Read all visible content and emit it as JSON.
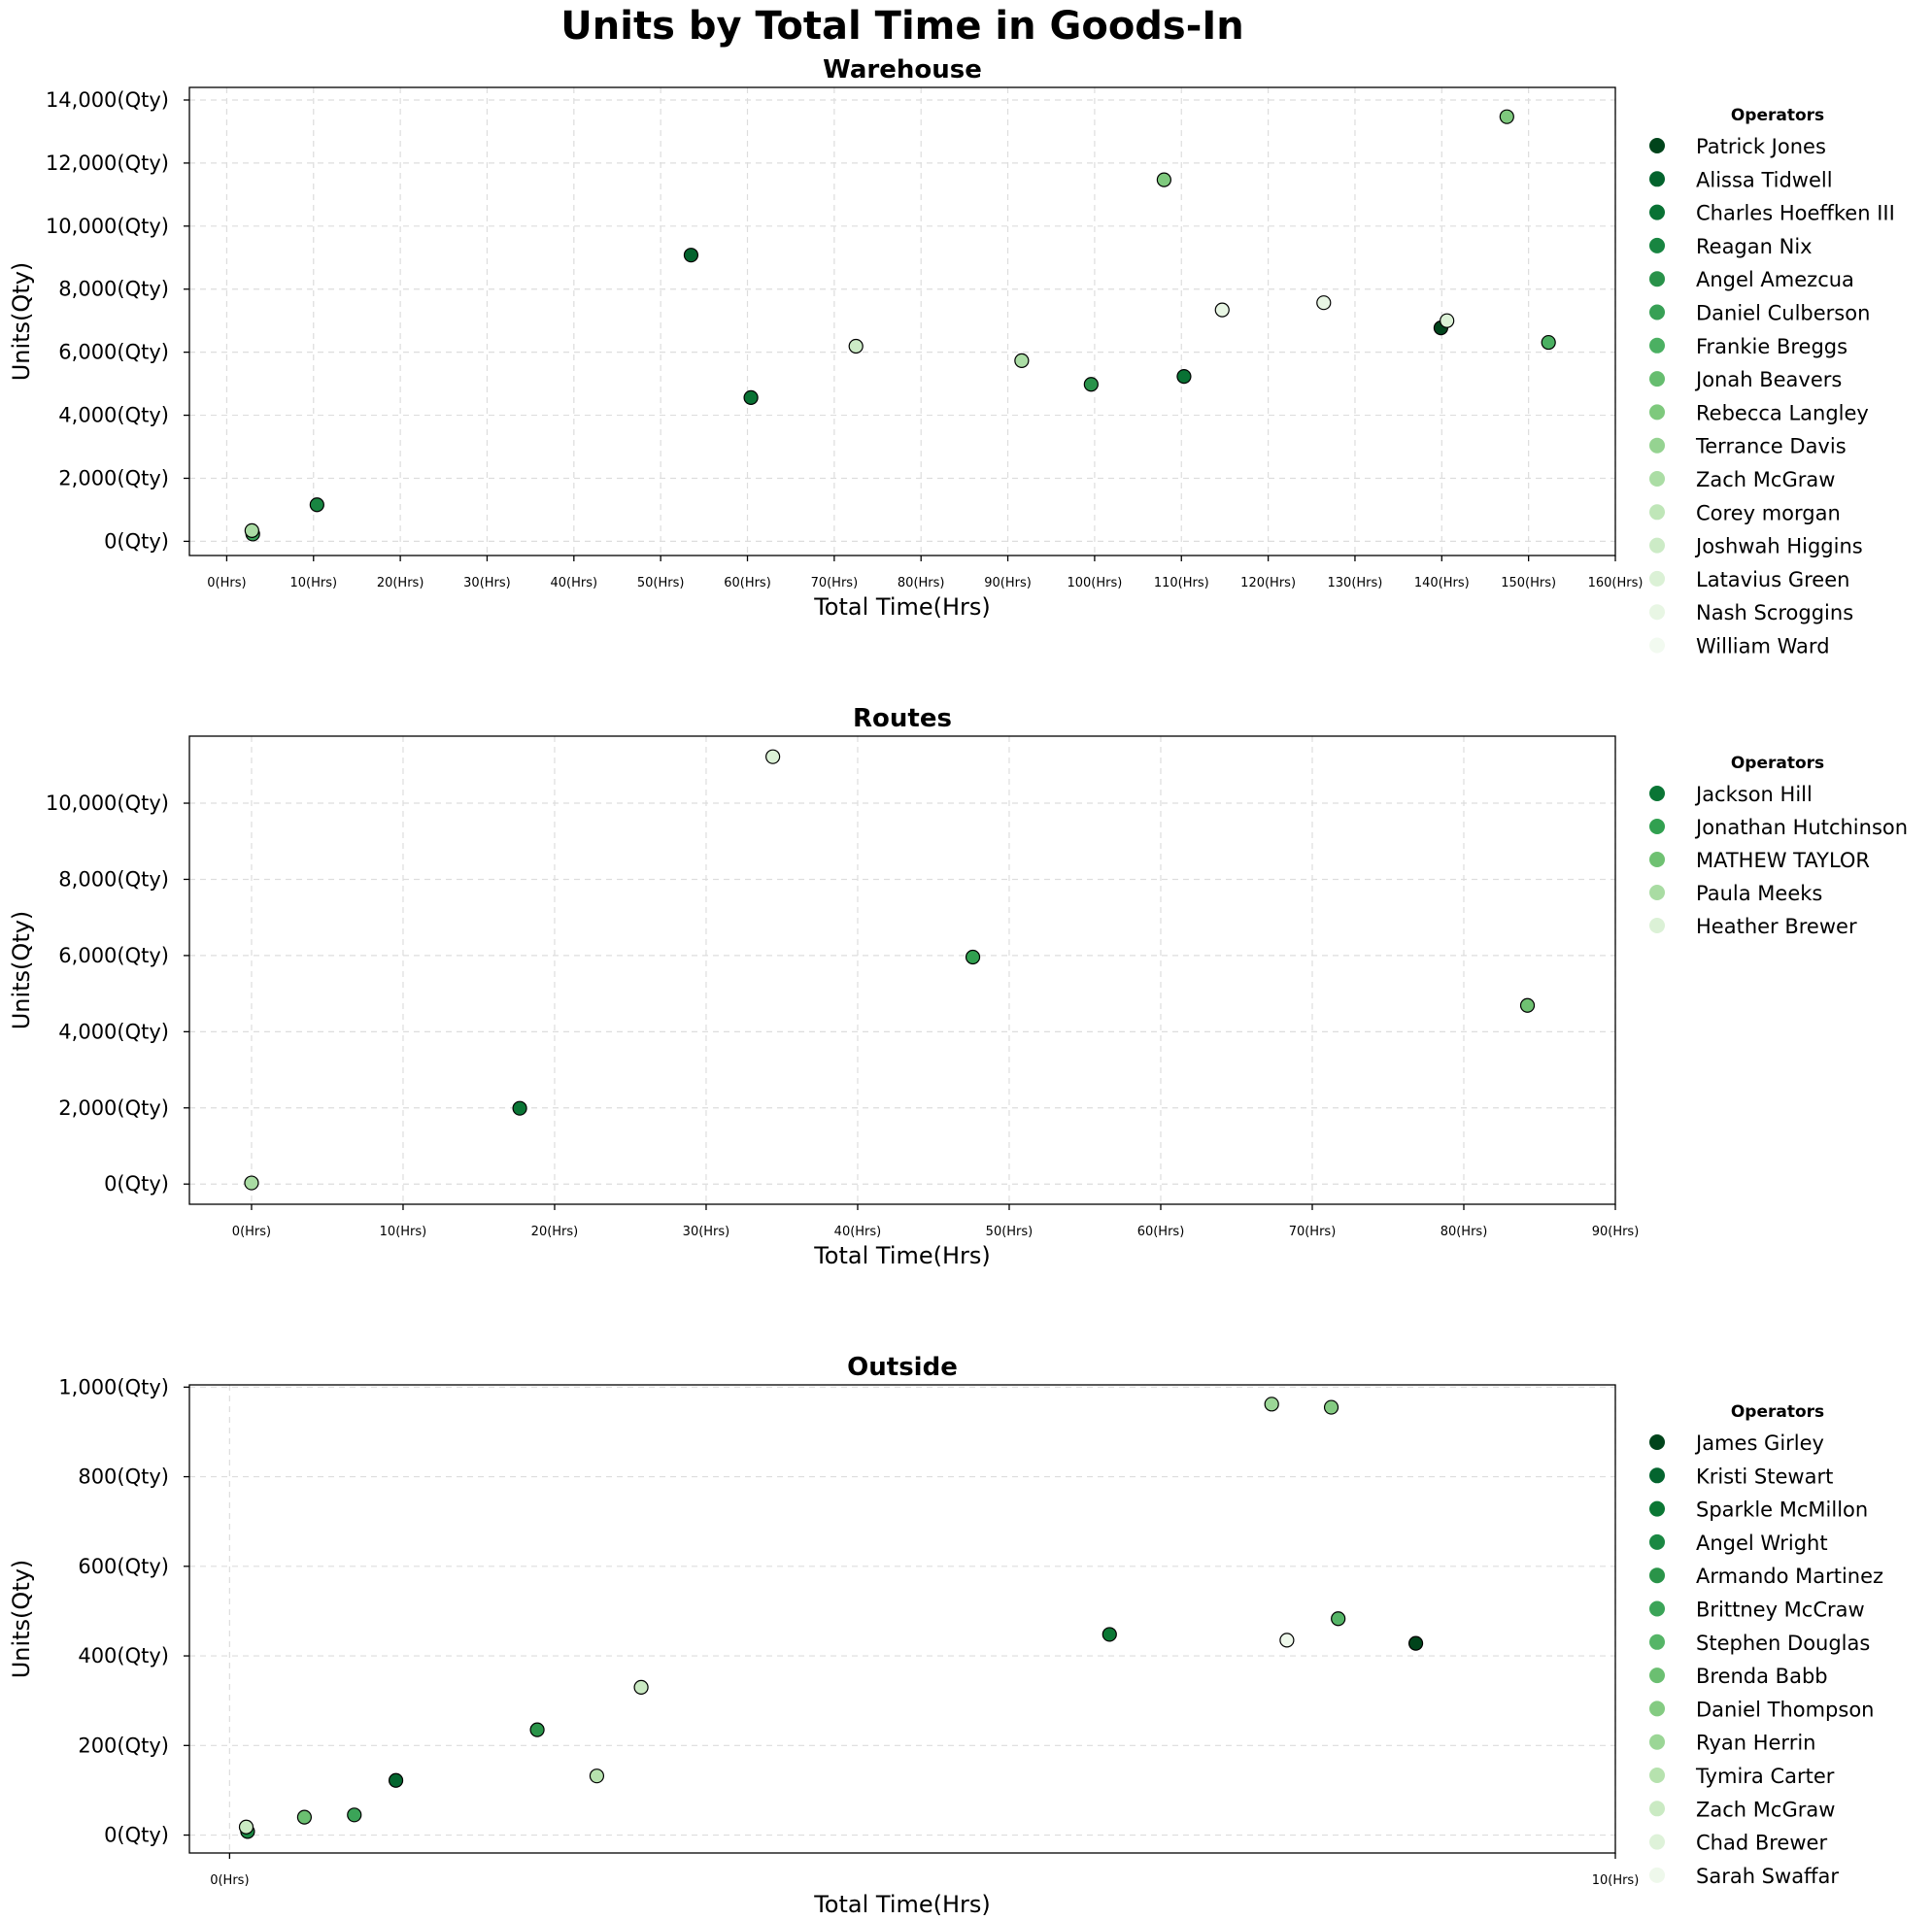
{
  "chart_data": {
    "suptitle": "Units by Total Time in Goods-In",
    "panels": [
      {
        "type": "scatter",
        "title": "Warehouse",
        "xlabel": "Total Time(Hrs)",
        "ylabel": "Units(Qty)",
        "xlim": [
          -4.3,
          160
        ],
        "ylim": [
          -450,
          14400
        ],
        "x_ticks": [
          0,
          10,
          20,
          30,
          40,
          50,
          60,
          70,
          80,
          90,
          100,
          110,
          120,
          130,
          140,
          150,
          160
        ],
        "x_tick_labels": [
          "0(Hrs)",
          "10(Hrs)",
          "20(Hrs)",
          "30(Hrs)",
          "40(Hrs)",
          "50(Hrs)",
          "60(Hrs)",
          "70(Hrs)",
          "80(Hrs)",
          "90(Hrs)",
          "100(Hrs)",
          "110(Hrs)",
          "120(Hrs)",
          "130(Hrs)",
          "140(Hrs)",
          "150(Hrs)",
          "160(Hrs)"
        ],
        "y_ticks": [
          0,
          2000,
          4000,
          6000,
          8000,
          10000,
          12000,
          14000
        ],
        "y_tick_labels": [
          "0(Qty)",
          "2,000(Qty)",
          "4,000(Qty)",
          "6,000(Qty)",
          "8,000(Qty)",
          "10,000(Qty)",
          "12,000(Qty)",
          "14,000(Qty)"
        ],
        "legend_title": "Operators",
        "legend_placement": "outside-right",
        "series": [
          {
            "name": "Patrick Jones",
            "color": "#00441b",
            "points": [
              [
                139.9,
                6770
              ]
            ]
          },
          {
            "name": "Alissa Tidwell",
            "color": "#03632d",
            "points": [
              [
                53.5,
                9080
              ]
            ]
          },
          {
            "name": "Charles Hoeffken III",
            "color": "#097234",
            "points": [
              [
                60.4,
                4560
              ],
              [
                110.3,
                5230
              ]
            ]
          },
          {
            "name": "Reagan Nix",
            "color": "#188541",
            "points": [
              [
                10.4,
                1160
              ]
            ]
          },
          {
            "name": "Angel Amezcua",
            "color": "#29924a",
            "points": [
              [
                99.6,
                4980
              ]
            ]
          },
          {
            "name": "Daniel Culberson",
            "color": "#37a055",
            "points": [
              [
                3.0,
                230
              ]
            ]
          },
          {
            "name": "Frankie Breggs",
            "color": "#4bb062",
            "points": [
              [
                152.3,
                6310
              ]
            ]
          },
          {
            "name": "Jonah Beavers",
            "color": "#66bd6f",
            "points": []
          },
          {
            "name": "Rebecca Langley",
            "color": "#7ec97d",
            "points": [
              [
                108.0,
                11470
              ],
              [
                147.5,
                13470
              ]
            ]
          },
          {
            "name": "Terrance Davis",
            "color": "#95d391",
            "points": []
          },
          {
            "name": "Zach McGraw",
            "color": "#abdda5",
            "points": [
              [
                2.9,
                340
              ],
              [
                91.6,
                5730
              ]
            ]
          },
          {
            "name": "Corey morgan",
            "color": "#bfe6b8",
            "points": []
          },
          {
            "name": "Joshwah Higgins",
            "color": "#ccebc6",
            "points": [
              [
                72.5,
                6190
              ]
            ]
          },
          {
            "name": "Latavius Green",
            "color": "#dbf1d6",
            "points": [
              [
                140.6,
                7000
              ]
            ]
          },
          {
            "name": "Nash Scroggins",
            "color": "#e8f6e4",
            "points": [
              [
                114.7,
                7340
              ],
              [
                126.4,
                7570
              ]
            ]
          },
          {
            "name": "William Ward",
            "color": "#f2faf0",
            "points": []
          }
        ]
      },
      {
        "type": "scatter",
        "title": "Routes",
        "xlabel": "Total Time(Hrs)",
        "ylabel": "Units(Qty)",
        "xlim": [
          -4.1,
          90
        ],
        "ylim": [
          -530,
          11760
        ],
        "x_ticks": [
          0,
          10,
          20,
          30,
          40,
          50,
          60,
          70,
          80,
          90
        ],
        "x_tick_labels": [
          "0(Hrs)",
          "10(Hrs)",
          "20(Hrs)",
          "30(Hrs)",
          "40(Hrs)",
          "50(Hrs)",
          "60(Hrs)",
          "70(Hrs)",
          "80(Hrs)",
          "90(Hrs)"
        ],
        "y_ticks": [
          0,
          2000,
          4000,
          6000,
          8000,
          10000
        ],
        "y_tick_labels": [
          "0(Qty)",
          "2,000(Qty)",
          "4,000(Qty)",
          "6,000(Qty)",
          "8,000(Qty)",
          "10,000(Qty)"
        ],
        "legend_title": "Operators",
        "legend_placement": "outside-right",
        "series": [
          {
            "name": "Jackson Hill",
            "color": "#0a7535",
            "points": [
              [
                17.7,
                1990
              ]
            ]
          },
          {
            "name": "Jonathan Hutchinson",
            "color": "#31a050",
            "points": [
              [
                47.6,
                5960
              ]
            ]
          },
          {
            "name": "MATHEW TAYLOR",
            "color": "#6fc172",
            "points": [
              [
                84.2,
                4690
              ]
            ]
          },
          {
            "name": "Paula Meeks",
            "color": "#a9dca3",
            "points": [
              [
                0.0,
                30
              ]
            ]
          },
          {
            "name": "Heather Brewer",
            "color": "#dbf1d6",
            "points": [
              [
                34.4,
                11220
              ]
            ]
          }
        ]
      },
      {
        "type": "scatter",
        "title": "Outside",
        "xlabel": "Total Time(Hrs)",
        "ylabel": "Units(Qty)",
        "xlim": [
          -0.29,
          10
        ],
        "ylim": [
          -40,
          1005
        ],
        "x_ticks": [
          0,
          10
        ],
        "x_tick_labels": [
          "0(Hrs)",
          "10(Hrs)"
        ],
        "y_ticks": [
          0,
          200,
          400,
          600,
          800,
          1000
        ],
        "y_tick_labels": [
          "0(Qty)",
          "200(Qty)",
          "400(Qty)",
          "600(Qty)",
          "800(Qty)",
          "1,000(Qty)"
        ],
        "legend_title": "Operators",
        "legend_placement": "outside-right",
        "series": [
          {
            "name": "James Girley",
            "color": "#00441b",
            "points": [
              [
                8.56,
                428
              ]
            ]
          },
          {
            "name": "Kristi Stewart",
            "color": "#04652f",
            "points": [
              [
                1.2,
                122
              ]
            ]
          },
          {
            "name": "Sparkle McMillon",
            "color": "#0b7734",
            "points": [
              [
                6.35,
                448
              ]
            ]
          },
          {
            "name": "Angel Wright",
            "color": "#1a8843",
            "points": [
              [
                0.13,
                8
              ]
            ]
          },
          {
            "name": "Armando Martinez",
            "color": "#2a9449",
            "points": [
              [
                2.22,
                235
              ]
            ]
          },
          {
            "name": "Brittney McCraw",
            "color": "#3ba458",
            "points": [
              [
                0.9,
                45
              ]
            ]
          },
          {
            "name": "Stephen Douglas",
            "color": "#55b567",
            "points": [
              [
                8.0,
                483
              ]
            ]
          },
          {
            "name": "Brenda Babb",
            "color": "#6bbf71",
            "points": [
              [
                0.54,
                40
              ]
            ]
          },
          {
            "name": "Daniel Thompson",
            "color": "#84cb82",
            "points": [
              [
                7.95,
                955
              ]
            ]
          },
          {
            "name": "Ryan Herrin",
            "color": "#9bd696",
            "points": [
              [
                7.52,
                962
              ]
            ]
          },
          {
            "name": "Tymira Carter",
            "color": "#b6e2ae",
            "points": [
              [
                2.65,
                132
              ]
            ]
          },
          {
            "name": "Zach McGraw",
            "color": "#caeac3",
            "points": [
              [
                2.97,
                330
              ],
              [
                0.12,
                18
              ]
            ]
          },
          {
            "name": "Chad Brewer",
            "color": "#def2d9",
            "points": []
          },
          {
            "name": "Sarah Swaffar",
            "color": "#eef8eb",
            "points": [
              [
                7.63,
                435
              ]
            ]
          }
        ]
      }
    ]
  }
}
